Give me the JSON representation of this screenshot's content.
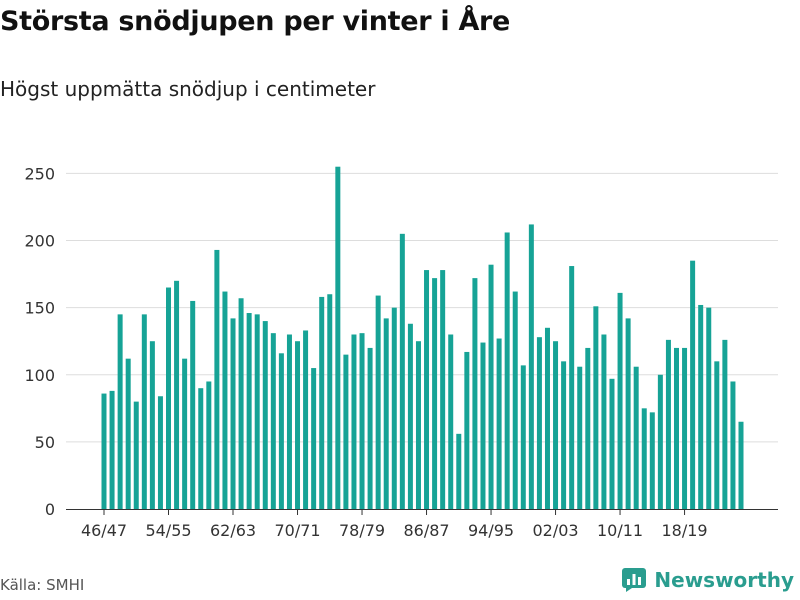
{
  "title": "Största snödjupen per vinter i Åre",
  "subtitle": "Högst uppmätta snödjup i centimeter",
  "source": "Källa: SMHI",
  "brand": {
    "name": "Newsworthy",
    "icon": "bar-chart-logo-icon",
    "color": "#2a9d8f"
  },
  "colors": {
    "bar": "#16a396",
    "grid": "#dddddd",
    "axis": "#333333"
  },
  "chart_data": {
    "type": "bar",
    "title": "Största snödjupen per vinter i Åre",
    "subtitle": "Högst uppmätta snödjup i centimeter",
    "xlabel": "",
    "ylabel": "",
    "ylim": [
      0,
      260
    ],
    "yticks": [
      0,
      50,
      100,
      150,
      200,
      250
    ],
    "grid": true,
    "legend": "none",
    "categories": [
      "46/47",
      "47/48",
      "48/49",
      "49/50",
      "50/51",
      "51/52",
      "52/53",
      "53/54",
      "54/55",
      "55/56",
      "56/57",
      "57/58",
      "58/59",
      "59/60",
      "60/61",
      "61/62",
      "62/63",
      "63/64",
      "64/65",
      "65/66",
      "66/67",
      "67/68",
      "68/69",
      "69/70",
      "70/71",
      "71/72",
      "72/73",
      "73/74",
      "74/75",
      "75/76",
      "76/77",
      "77/78",
      "78/79",
      "79/80",
      "80/81",
      "81/82",
      "82/83",
      "83/84",
      "84/85",
      "85/86",
      "86/87",
      "87/88",
      "88/89",
      "89/90",
      "90/91",
      "91/92",
      "92/93",
      "93/94",
      "94/95",
      "95/96",
      "96/97",
      "97/98",
      "98/99",
      "99/00",
      "00/01",
      "01/02",
      "02/03",
      "03/04",
      "04/05",
      "05/06",
      "06/07",
      "07/08",
      "08/09",
      "09/10",
      "10/11",
      "11/12",
      "12/13",
      "13/14",
      "14/15",
      "15/16",
      "16/17",
      "17/18",
      "18/19",
      "19/20",
      "20/21",
      "21/22",
      "22/23",
      "23/24",
      "24/25",
      "25/26"
    ],
    "values": [
      86,
      88,
      145,
      112,
      80,
      145,
      125,
      84,
      165,
      170,
      112,
      155,
      90,
      95,
      193,
      162,
      142,
      157,
      146,
      145,
      140,
      131,
      116,
      130,
      125,
      133,
      105,
      158,
      160,
      255,
      115,
      130,
      131,
      120,
      159,
      142,
      150,
      205,
      138,
      125,
      178,
      172,
      178,
      130,
      56,
      117,
      172,
      124,
      182,
      127,
      206,
      162,
      107,
      212,
      128,
      135,
      125,
      110,
      181,
      106,
      120,
      151,
      130,
      97,
      161,
      142,
      106,
      75,
      72,
      100,
      126,
      120,
      120,
      185,
      152,
      150,
      110,
      126,
      95,
      65
    ],
    "xtick_labels": [
      "46/47",
      "54/55",
      "62/63",
      "70/71",
      "78/79",
      "86/87",
      "94/95",
      "02/03",
      "10/11",
      "18/19"
    ]
  }
}
